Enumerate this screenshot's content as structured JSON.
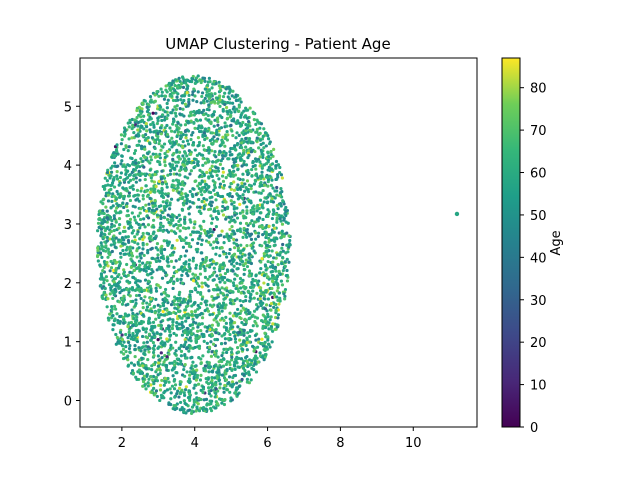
{
  "chart_data": {
    "type": "scatter",
    "title": "UMAP Clustering - Patient Age",
    "xlabel": "",
    "ylabel": "",
    "xlim": [
      0.85,
      11.75
    ],
    "ylim": [
      -0.45,
      5.82
    ],
    "xticks": [
      2,
      4,
      6,
      8,
      10
    ],
    "yticks": [
      0,
      1,
      2,
      3,
      4,
      5
    ],
    "colorbar": {
      "label": "Age",
      "range": [
        0,
        87
      ],
      "ticks": [
        0,
        10,
        20,
        30,
        40,
        50,
        60,
        70,
        80
      ],
      "colormap": "viridis"
    },
    "cluster": {
      "center": [
        4.0,
        2.65
      ],
      "x_span": [
        1.35,
        6.6
      ],
      "y_span": [
        -0.2,
        5.55
      ],
      "point_count": 4200,
      "age_mean": 60,
      "age_sd": 10
    },
    "outlier_points": [
      {
        "x": 11.2,
        "y": 3.17,
        "age": 58
      }
    ],
    "grid": false,
    "legend": "none",
    "marker_size": 1.6
  }
}
